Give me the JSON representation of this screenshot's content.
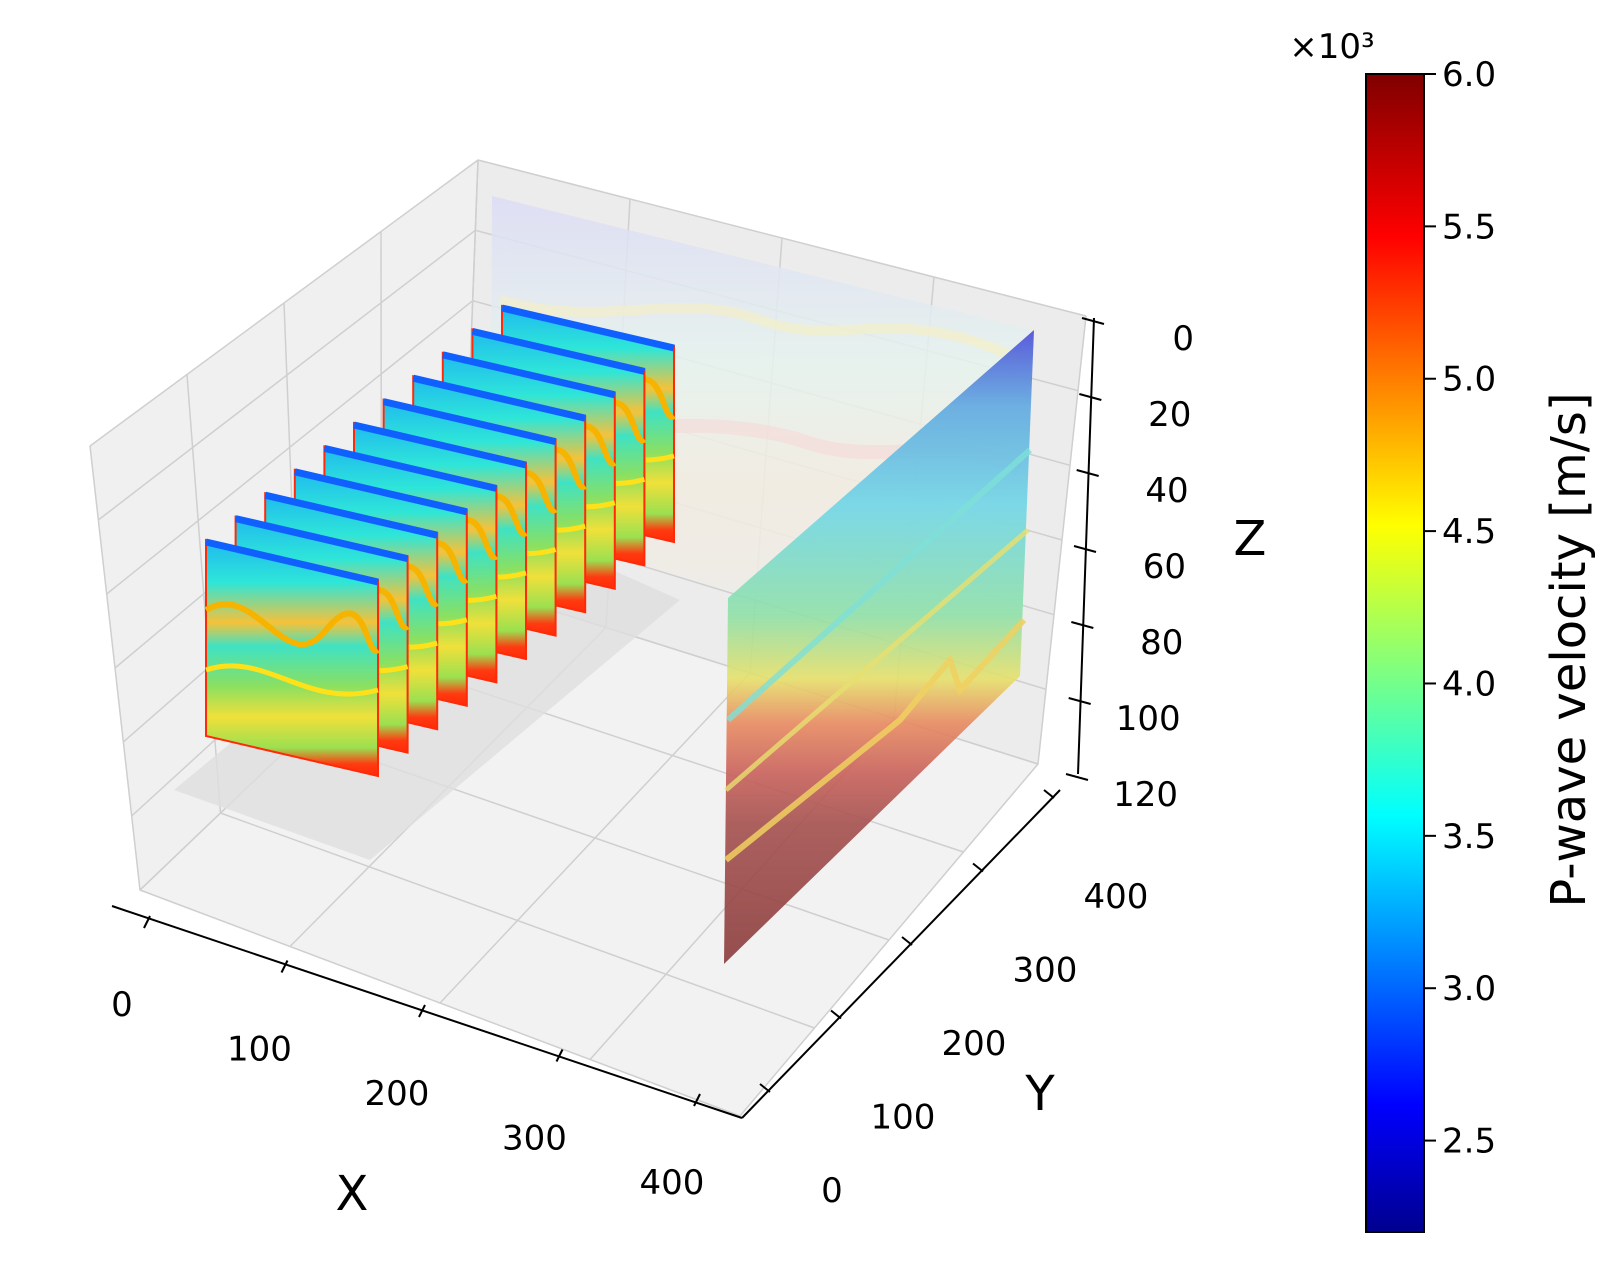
{
  "chart_data": {
    "type": "3d-slice-volume",
    "x_axis": {
      "label": "X",
      "ticks": [
        "0",
        "100",
        "200",
        "300",
        "400"
      ],
      "range": [
        0,
        400
      ]
    },
    "y_axis": {
      "label": "Y",
      "ticks": [
        "0",
        "100",
        "200",
        "300",
        "400"
      ],
      "range": [
        0,
        400
      ]
    },
    "z_axis": {
      "label": "Z",
      "ticks": [
        "0",
        "20",
        "40",
        "60",
        "80",
        "100",
        "120"
      ],
      "range": [
        0,
        120
      ],
      "inverted": true
    },
    "grid": true,
    "colormap": "jet",
    "colorbar": {
      "label": "P-wave velocity [m/s]",
      "multiplier": "×10³",
      "ticks": [
        "2.5",
        "3.0",
        "3.5",
        "4.0",
        "4.5",
        "5.0",
        "5.5",
        "6.0"
      ],
      "range": [
        2.2,
        6.0
      ],
      "position": "right"
    },
    "slices": [
      {
        "orientation": "xz",
        "y": 0
      },
      {
        "orientation": "xz",
        "y": 25
      },
      {
        "orientation": "xz",
        "y": 50
      },
      {
        "orientation": "xz",
        "y": 75
      },
      {
        "orientation": "xz",
        "y": 100
      },
      {
        "orientation": "xz",
        "y": 125
      },
      {
        "orientation": "xz",
        "y": 150
      },
      {
        "orientation": "xz",
        "y": 175
      },
      {
        "orientation": "xz",
        "y": 200
      },
      {
        "orientation": "xz",
        "y": 225
      },
      {
        "orientation": "xz",
        "y": 250
      }
    ],
    "side_panel": {
      "orientation": "yz",
      "x": 400
    }
  }
}
